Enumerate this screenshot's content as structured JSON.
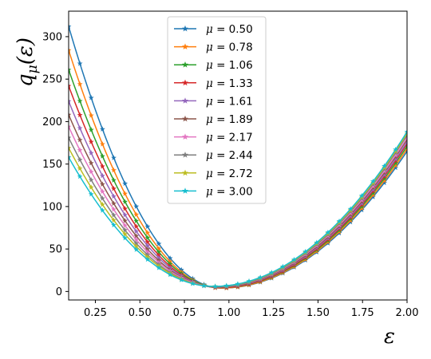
{
  "chart_data": {
    "type": "line",
    "xlabel": "ε",
    "ylabel": "q_μ(ε)",
    "xlim": [
      0.1,
      2.0
    ],
    "ylim": [
      -10,
      330
    ],
    "xticks": [
      "0.25",
      "0.50",
      "0.75",
      "1.00",
      "1.25",
      "1.50",
      "1.75",
      "2.00"
    ],
    "yticks": [
      "0",
      "50",
      "100",
      "150",
      "200",
      "250",
      "300"
    ],
    "grid": false,
    "legend_position": "top-center",
    "marker": "star",
    "x": [
      0.1,
      0.1633,
      0.2266,
      0.2899,
      0.3532,
      0.4165,
      0.4798,
      0.5431,
      0.6064,
      0.6697,
      0.733,
      0.7963,
      0.8596,
      0.9229,
      0.9862,
      1.0495,
      1.1128,
      1.1761,
      1.2394,
      1.3027,
      1.366,
      1.4293,
      1.4926,
      1.5559,
      1.6192,
      1.6825,
      1.7458,
      1.8091,
      1.8724,
      1.9357,
      2.0
    ],
    "series": [
      {
        "name": "μ = 0.50",
        "mu": 0.5,
        "color": "#1f77b4",
        "min_x": 0.96,
        "min_y": 4,
        "y_left": 312,
        "y_right": 165
      },
      {
        "name": "μ = 0.78",
        "mu": 0.78,
        "color": "#ff7f0e",
        "min_x": 0.955,
        "min_y": 4,
        "y_left": 284,
        "y_right": 168
      },
      {
        "name": "μ = 1.06",
        "mu": 1.06,
        "color": "#2ca02c",
        "min_x": 0.95,
        "min_y": 4.5,
        "y_left": 261,
        "y_right": 171
      },
      {
        "name": "μ = 1.33",
        "mu": 1.33,
        "color": "#d62728",
        "min_x": 0.945,
        "min_y": 4.5,
        "y_left": 242,
        "y_right": 174
      },
      {
        "name": "μ = 1.61",
        "mu": 1.61,
        "color": "#9467bd",
        "min_x": 0.94,
        "min_y": 5,
        "y_left": 224,
        "y_right": 176
      },
      {
        "name": "μ = 1.89",
        "mu": 1.89,
        "color": "#8c564b",
        "min_x": 0.935,
        "min_y": 5,
        "y_left": 208,
        "y_right": 179
      },
      {
        "name": "μ = 2.17",
        "mu": 2.17,
        "color": "#e377c2",
        "min_x": 0.93,
        "min_y": 5.5,
        "y_left": 194,
        "y_right": 181
      },
      {
        "name": "μ = 2.44",
        "mu": 2.44,
        "color": "#7f7f7f",
        "min_x": 0.925,
        "min_y": 5.5,
        "y_left": 181,
        "y_right": 184
      },
      {
        "name": "μ = 2.72",
        "mu": 2.72,
        "color": "#bcbd22",
        "min_x": 0.92,
        "min_y": 6,
        "y_left": 169,
        "y_right": 186
      },
      {
        "name": "μ = 3.00",
        "mu": 3.0,
        "color": "#17becf",
        "min_x": 0.915,
        "min_y": 6,
        "y_left": 158,
        "y_right": 188
      }
    ]
  }
}
